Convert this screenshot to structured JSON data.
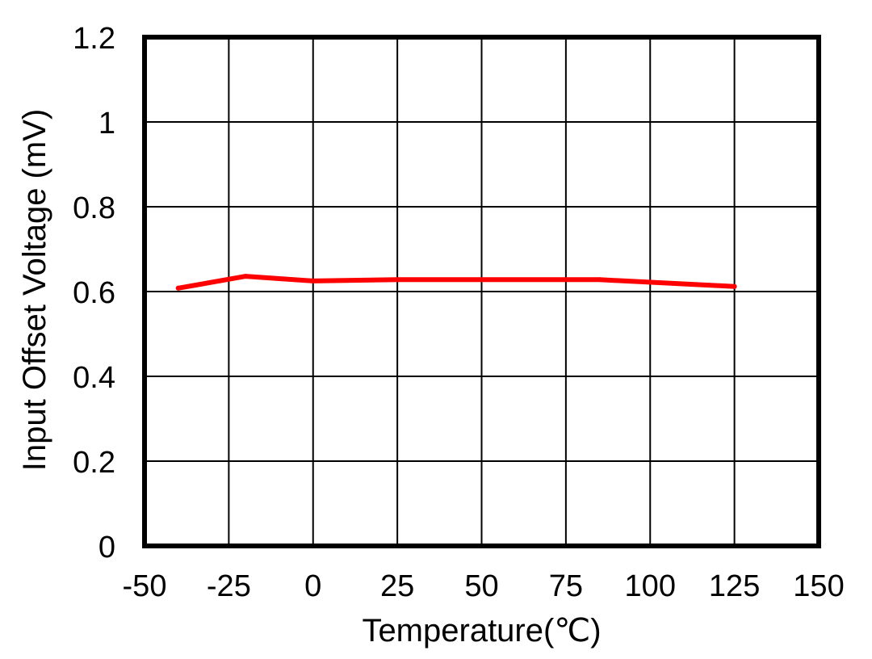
{
  "chart_data": {
    "type": "line",
    "title": "",
    "xlabel": "Temperature(℃)",
    "ylabel": "Input Offset Voltage (mV)",
    "xlim": [
      -50,
      150
    ],
    "ylim": [
      0,
      1.2
    ],
    "x_ticks": [
      "-50",
      "-25",
      "0",
      "25",
      "50",
      "75",
      "100",
      "125",
      "150"
    ],
    "y_ticks": [
      "0",
      "0.2",
      "0.4",
      "0.6",
      "0.8",
      "1",
      "1.2"
    ],
    "grid": true,
    "legend": "none",
    "series": [
      {
        "color": "#ff0000",
        "x": [
          -40,
          -20,
          0,
          25,
          50,
          85,
          125
        ],
        "y": [
          0.608,
          0.636,
          0.625,
          0.628,
          0.628,
          0.628,
          0.612
        ]
      }
    ]
  }
}
